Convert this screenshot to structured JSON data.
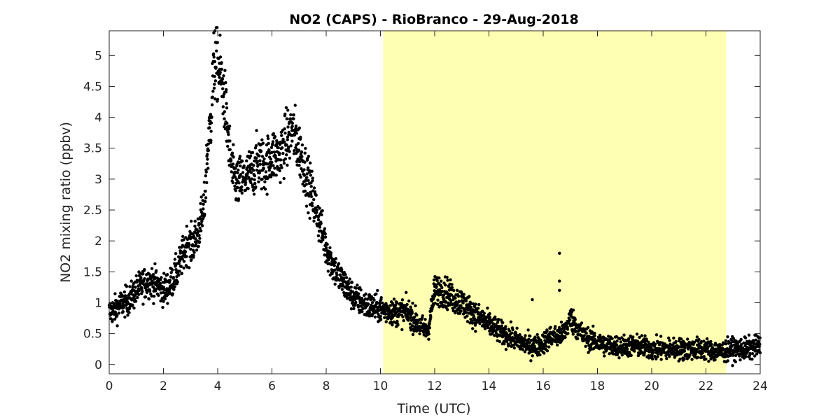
{
  "chart_data": {
    "type": "scatter",
    "title": "NO2 (CAPS) - RioBranco - 29-Aug-2018",
    "xlabel": "Time (UTC)",
    "ylabel": "NO2 mixing ratio (ppbv)",
    "xlim": [
      0,
      24
    ],
    "ylim": [
      -0.15,
      5.4
    ],
    "xticks": [
      0,
      2,
      4,
      6,
      8,
      10,
      12,
      14,
      16,
      18,
      20,
      22,
      24
    ],
    "yticks": [
      0,
      0.5,
      1,
      1.5,
      2,
      2.5,
      3,
      3.5,
      4,
      4.5,
      5
    ],
    "ytick_labels": [
      "0",
      "0.5",
      "1",
      "1.5",
      "2",
      "2.5",
      "3",
      "3.5",
      "4",
      "4.5",
      "5"
    ],
    "grid": false,
    "highlight_band": {
      "x_start": 10.1,
      "x_end": 22.75,
      "color": "#ffffb3"
    },
    "marker_color": "#000000",
    "series": [
      {
        "x": [
          0,
          0.25,
          0.5,
          0.75,
          1,
          1.25,
          1.5,
          1.75,
          2,
          2.25,
          2.5,
          2.75,
          2.9,
          3,
          3.25,
          3.5,
          3.6,
          3.75,
          3.85,
          4,
          4.1,
          4.25,
          4.4,
          4.5,
          4.6,
          4.75,
          5,
          5.25,
          5.5,
          5.75,
          6,
          6.25,
          6.5,
          6.75,
          7,
          7.25,
          7.5,
          7.75,
          8,
          8.25,
          8.5,
          8.75,
          9,
          9.5,
          10,
          10.5,
          11,
          11.5,
          11.75,
          12,
          12.25,
          12.5,
          12.75,
          13,
          13.5,
          14,
          14.5,
          15,
          15.5,
          15.75,
          16,
          16.25,
          16.5,
          16.75,
          17,
          17.25,
          17.5,
          18,
          18.5,
          19,
          19.5,
          20,
          20.5,
          21,
          21.5,
          22,
          22.5,
          23,
          23.5,
          24
        ],
        "y": [
          0.85,
          0.9,
          1.0,
          1.05,
          1.2,
          1.3,
          1.35,
          1.3,
          1.2,
          1.3,
          1.5,
          1.8,
          2.0,
          1.9,
          2.1,
          2.5,
          3.3,
          4.0,
          4.8,
          4.85,
          4.7,
          4.3,
          3.6,
          3.2,
          3.0,
          2.95,
          3.0,
          3.1,
          3.3,
          3.2,
          3.4,
          3.35,
          3.6,
          3.8,
          3.5,
          3.1,
          2.7,
          2.3,
          1.9,
          1.6,
          1.4,
          1.25,
          1.1,
          0.95,
          0.9,
          0.85,
          0.85,
          0.6,
          0.55,
          1.2,
          1.2,
          1.15,
          1.05,
          1.0,
          0.8,
          0.65,
          0.5,
          0.4,
          0.3,
          0.3,
          0.35,
          0.45,
          0.45,
          0.5,
          0.75,
          0.6,
          0.45,
          0.35,
          0.3,
          0.3,
          0.3,
          0.25,
          0.25,
          0.25,
          0.25,
          0.25,
          0.2,
          0.25,
          0.25,
          0.3
        ]
      }
    ],
    "outliers": [
      {
        "x": 16.6,
        "y": 1.8
      },
      {
        "x": 16.6,
        "y": 1.35
      },
      {
        "x": 16.6,
        "y": 1.2
      },
      {
        "x": 15.6,
        "y": 1.05
      },
      {
        "x": 3.9,
        "y": 5.4
      }
    ]
  }
}
